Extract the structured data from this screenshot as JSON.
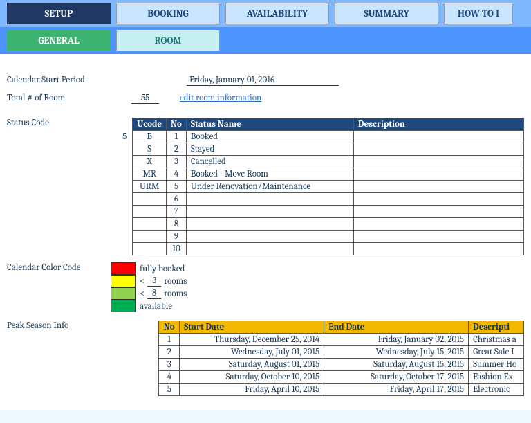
{
  "tabs": {
    "main": [
      "SETUP",
      "BOOKING",
      "AVAILABILITY",
      "SUMMARY",
      "HOW TO I"
    ],
    "sub": [
      "GENERAL",
      "ROOM"
    ]
  },
  "calendar_start": {
    "label": "Calendar Start Period",
    "value": "Friday, January 01, 2016"
  },
  "total_rooms": {
    "label": "Total # of Room",
    "value": "55",
    "link": "edit room information"
  },
  "status_code": {
    "label": "Status Code",
    "count": "5",
    "headers": [
      "Ucode",
      "No",
      "Status Name",
      "Description"
    ],
    "rows": [
      {
        "ucode": "B",
        "no": "1",
        "name": "Booked",
        "desc": ""
      },
      {
        "ucode": "S",
        "no": "2",
        "name": "Stayed",
        "desc": ""
      },
      {
        "ucode": "X",
        "no": "3",
        "name": "Cancelled",
        "desc": ""
      },
      {
        "ucode": "MR",
        "no": "4",
        "name": "Booked - Move Room",
        "desc": ""
      },
      {
        "ucode": "URM",
        "no": "5",
        "name": "Under Renovation/Maintenance",
        "desc": ""
      },
      {
        "ucode": "",
        "no": "6",
        "name": "",
        "desc": ""
      },
      {
        "ucode": "",
        "no": "7",
        "name": "",
        "desc": ""
      },
      {
        "ucode": "",
        "no": "8",
        "name": "",
        "desc": ""
      },
      {
        "ucode": "",
        "no": "9",
        "name": "",
        "desc": ""
      },
      {
        "ucode": "",
        "no": "10",
        "name": "",
        "desc": ""
      }
    ]
  },
  "color_code": {
    "label": "Calendar Color Code",
    "items": [
      {
        "color": "#ff0000",
        "text": "fully booked",
        "num": ""
      },
      {
        "color": "#ffff00",
        "text": "rooms",
        "num": "3",
        "prefix": "<"
      },
      {
        "color": "#92d050",
        "text": "rooms",
        "num": "8",
        "prefix": "<"
      },
      {
        "color": "#00b050",
        "text": "available",
        "num": ""
      }
    ]
  },
  "peak_season": {
    "label": "Peak Season Info",
    "headers": [
      "No",
      "Start Date",
      "End Date",
      "Descripti"
    ],
    "rows": [
      {
        "no": "1",
        "start": "Thursday, December 25, 2014",
        "end": "Friday, January 02, 2015",
        "desc": "Christmas a"
      },
      {
        "no": "2",
        "start": "Wednesday, July 01, 2015",
        "end": "Wednesday, July 15, 2015",
        "desc": "Great Sale I"
      },
      {
        "no": "3",
        "start": "Saturday, August 01, 2015",
        "end": "Saturday, August 15, 2015",
        "desc": "Summer Ho"
      },
      {
        "no": "4",
        "start": "Saturday, October 10, 2015",
        "end": "Saturday, October 17, 2015",
        "desc": "Fashion Ex"
      },
      {
        "no": "5",
        "start": "Friday, April 10, 2015",
        "end": "Friday, April 17, 2015",
        "desc": "Electronic"
      }
    ]
  }
}
